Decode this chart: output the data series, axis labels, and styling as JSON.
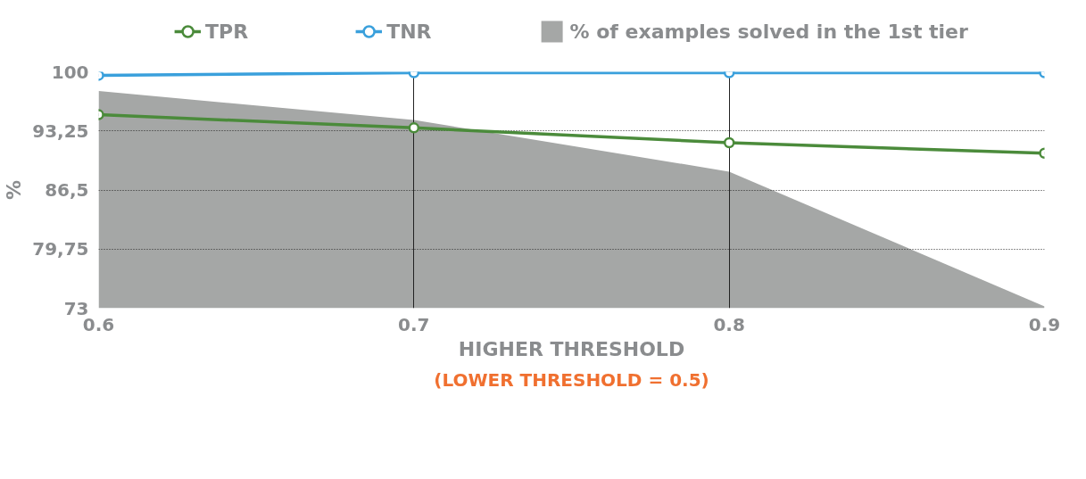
{
  "chart_data": {
    "type": "line",
    "xlabel": "HIGHER THRESHOLD",
    "ylabel": "%",
    "annotations": [
      "(LOWER THRESHOLD = 0.5)"
    ],
    "x": [
      0.6,
      0.7,
      0.8,
      0.9
    ],
    "series": [
      {
        "name": "TPR",
        "color": "#4b8b3b",
        "values": [
          95.1,
          93.6,
          91.9,
          90.7
        ],
        "marker": "circle"
      },
      {
        "name": "TNR",
        "color": "#3aa0dc",
        "values": [
          99.6,
          99.9,
          99.9,
          99.9
        ],
        "marker": "circle"
      },
      {
        "name": "% of examples solved in the 1st tier",
        "type": "area",
        "color": "#a5a7a6",
        "values": [
          97.8,
          94.5,
          88.6,
          73.2
        ]
      }
    ],
    "xlim": [
      0.6,
      0.9
    ],
    "ylim": [
      73,
      100
    ],
    "xticks": [
      0.6,
      0.7,
      0.8,
      0.9
    ],
    "yticks": [
      73,
      {
        "value": 79.75,
        "label": "79,75"
      },
      {
        "value": 86.5,
        "label": "86,5"
      },
      {
        "value": 93.25,
        "label": "93,25"
      },
      100
    ],
    "grid": true,
    "legend": "top",
    "line_style": "solid"
  }
}
